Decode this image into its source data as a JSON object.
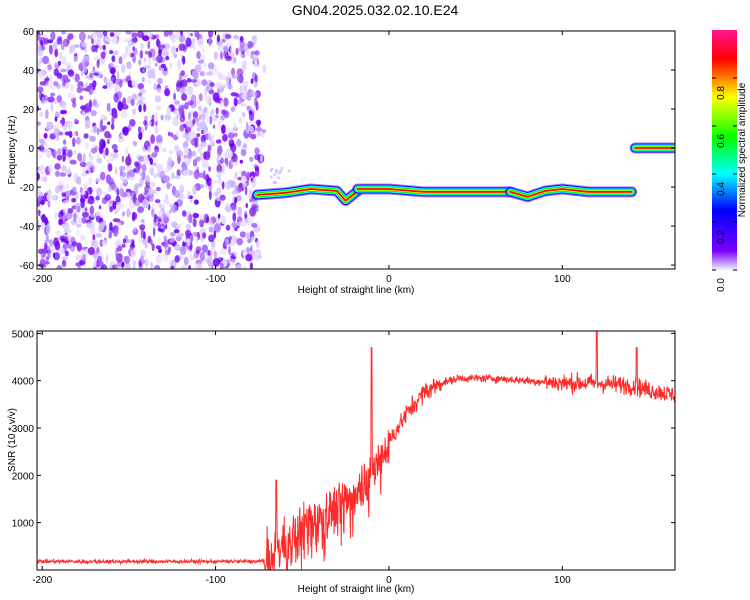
{
  "title": "GN04.2025.032.02.10.E24",
  "chart_data": [
    {
      "type": "heatmap",
      "xlabel": "Height of straight line (km)",
      "ylabel": "Frequency (Hz)",
      "xlim": [
        -203,
        165
      ],
      "ylim": [
        -62,
        60
      ],
      "xticks": [
        -200,
        -100,
        0,
        100
      ],
      "yticks": [
        60,
        40,
        20,
        0,
        -20,
        -40,
        -60
      ],
      "colorbar": {
        "label": "Normalized spectral amplitude",
        "ticks": [
          "0.0",
          "0.2",
          "0.4",
          "0.6",
          "0.8"
        ],
        "range": [
          0,
          1
        ],
        "colors": [
          "#f0f0ff",
          "#7a00ff",
          "#0000ff",
          "#00ffff",
          "#00ff00",
          "#ffff00",
          "#ff0000",
          "#ff1493"
        ]
      },
      "noise_region": {
        "x": [
          -203,
          -75
        ],
        "y": [
          -62,
          60
        ]
      },
      "traces": [
        {
          "x": [
            -76,
            -60,
            -45,
            -30,
            -25,
            -18
          ],
          "y": [
            -24,
            -23,
            -21,
            -22,
            -27,
            -22
          ]
        },
        {
          "x": [
            -18,
            0,
            20,
            40,
            60,
            70
          ],
          "y": [
            -21,
            -21,
            -22.5,
            -22.5,
            -22.5,
            -22.5
          ]
        },
        {
          "x": [
            70,
            80,
            90,
            100,
            115,
            140
          ],
          "y": [
            -22.5,
            -25,
            -22,
            -21,
            -22.5,
            -22.5
          ]
        },
        {
          "x": [
            142,
            152,
            165
          ],
          "y": [
            0,
            0,
            0
          ]
        }
      ]
    },
    {
      "type": "line",
      "xlabel": "Height of straight line (km)",
      "ylabel": "SNR (10 * v/v)",
      "xlim": [
        -203,
        165
      ],
      "ylim": [
        0,
        5050
      ],
      "xticks": [
        -200,
        -100,
        0,
        100
      ],
      "yticks": [
        1000,
        2000,
        3000,
        4000,
        5000
      ],
      "color": "#ff2a2a",
      "envelope": {
        "x": [
          -203,
          -75,
          -68,
          -60,
          -50,
          -40,
          -30,
          -20,
          -10,
          0,
          10,
          20,
          30,
          40,
          60,
          80,
          100,
          120,
          140,
          150,
          165
        ],
        "y": [
          180,
          180,
          250,
          600,
          950,
          1150,
          1350,
          1650,
          2100,
          2700,
          3300,
          3750,
          3950,
          4050,
          4050,
          4000,
          3950,
          3950,
          3900,
          3800,
          3700
        ]
      },
      "spikes": [
        {
          "x": -65,
          "y": 1900
        },
        {
          "x": -10,
          "y": 4700
        },
        {
          "x": 120,
          "y": 5050
        },
        {
          "x": 143,
          "y": 4700
        }
      ]
    }
  ]
}
